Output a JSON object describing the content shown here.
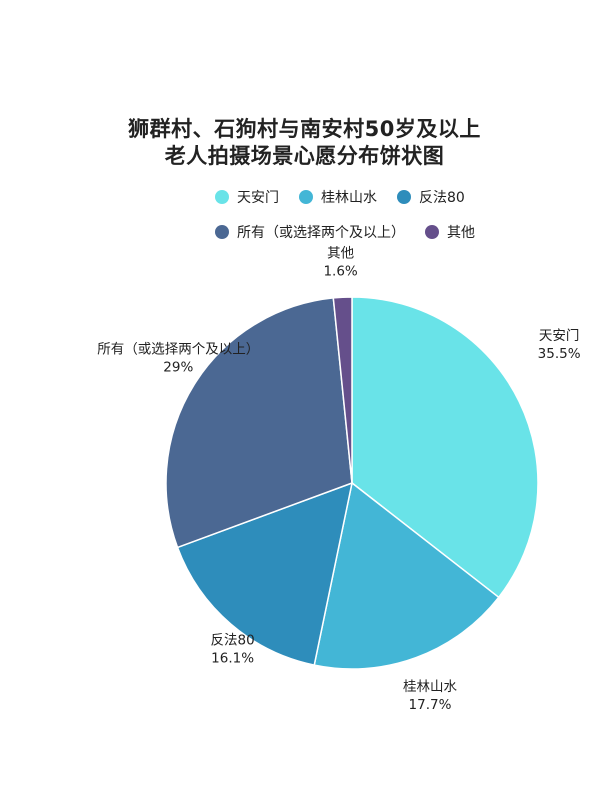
{
  "chart_data": {
    "type": "pie",
    "title_lines": [
      "狮群村、石狗村与南安村50岁及以上",
      "老人拍摄场景心愿分布饼状图"
    ],
    "slices": [
      {
        "label": "天安门",
        "value": 35.5,
        "value_label": "35.5%",
        "color": "#69e3e8"
      },
      {
        "label": "桂林山水",
        "value": 17.7,
        "value_label": "17.7%",
        "color": "#43b6d6"
      },
      {
        "label": "反法80",
        "value": 16.1,
        "value_label": "16.1%",
        "color": "#2e8dbb"
      },
      {
        "label": "所有（或选择两个及以上）",
        "value": 29,
        "value_label": "29%",
        "color": "#4b6893"
      },
      {
        "label": "其他",
        "value": 1.6,
        "value_label": "1.6%",
        "color": "#654f8b"
      }
    ],
    "legend": {
      "placement": "top",
      "rows": [
        [
          "天安门",
          "桂林山水",
          "反法80"
        ],
        [
          "所有（或选择两个及以上）",
          "其他"
        ]
      ]
    }
  }
}
